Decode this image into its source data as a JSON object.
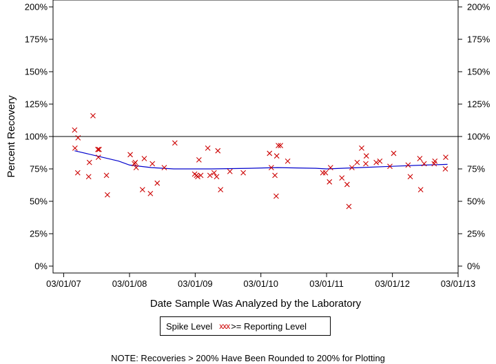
{
  "chart_data": {
    "type": "scatter",
    "xlabel": "Date Sample Was Analyzed by the Laboratory",
    "ylabel": "Percent Recovery",
    "ylim": [
      0,
      200
    ],
    "xlim": [
      "2007-01-01",
      "2013-03-01"
    ],
    "y_ticks": [
      "0%",
      "25%",
      "50%",
      "75%",
      "100%",
      "125%",
      "150%",
      "175%",
      "200%"
    ],
    "y_tick_values": [
      0,
      25,
      50,
      75,
      100,
      125,
      150,
      175,
      200
    ],
    "x_ticks": [
      "03/01/07",
      "03/01/08",
      "03/01/09",
      "03/01/10",
      "03/01/11",
      "03/01/12",
      "03/01/13"
    ],
    "x_tick_values": [
      "2007-03-01",
      "2008-03-01",
      "2009-03-01",
      "2010-03-01",
      "2011-03-01",
      "2012-03-01",
      "2013-03-01"
    ],
    "reference_line": 100,
    "colors": {
      "points": "#cc0000",
      "trend": "#0000cc",
      "axes": "#000000"
    },
    "series": [
      {
        "legend_symbol": "xxx",
        "points": [
          [
            "2007-05-01",
            105
          ],
          [
            "2007-05-03",
            91
          ],
          [
            "2007-05-18",
            72
          ],
          [
            "2007-05-20",
            99
          ],
          [
            "2007-07-18",
            69
          ],
          [
            "2007-07-22",
            80
          ],
          [
            "2007-08-11",
            116
          ],
          [
            "2007-09-07",
            90
          ],
          [
            "2007-09-14",
            90
          ],
          [
            "2007-09-10",
            84
          ],
          [
            "2007-10-25",
            70
          ],
          [
            "2007-10-30",
            55
          ],
          [
            "2008-03-05",
            86
          ],
          [
            "2008-03-28",
            79
          ],
          [
            "2008-04-02",
            80
          ],
          [
            "2008-04-07",
            76
          ],
          [
            "2008-05-12",
            59
          ],
          [
            "2008-05-22",
            83
          ],
          [
            "2008-06-25",
            56
          ],
          [
            "2008-07-06",
            79
          ],
          [
            "2008-08-02",
            64
          ],
          [
            "2008-09-10",
            76
          ],
          [
            "2008-11-08",
            95
          ],
          [
            "2009-02-26",
            71
          ],
          [
            "2009-03-08",
            70
          ],
          [
            "2009-03-15",
            69
          ],
          [
            "2009-03-22",
            82
          ],
          [
            "2009-04-01",
            70
          ],
          [
            "2009-05-10",
            91
          ],
          [
            "2009-05-22",
            70
          ],
          [
            "2009-06-14",
            72
          ],
          [
            "2009-06-28",
            69
          ],
          [
            "2009-07-05",
            89
          ],
          [
            "2009-07-20",
            59
          ],
          [
            "2009-09-10",
            73
          ],
          [
            "2009-11-23",
            72
          ],
          [
            "2010-04-18",
            87
          ],
          [
            "2010-04-28",
            76
          ],
          [
            "2010-05-18",
            70
          ],
          [
            "2010-05-28",
            85
          ],
          [
            "2010-05-25",
            54
          ],
          [
            "2010-06-06",
            93
          ],
          [
            "2010-06-18",
            93
          ],
          [
            "2010-07-28",
            81
          ],
          [
            "2011-02-08",
            72
          ],
          [
            "2011-02-23",
            72
          ],
          [
            "2011-03-17",
            65
          ],
          [
            "2011-03-23",
            76
          ],
          [
            "2011-05-25",
            68
          ],
          [
            "2011-06-23",
            63
          ],
          [
            "2011-07-03",
            46
          ],
          [
            "2011-07-20",
            76
          ],
          [
            "2011-08-18",
            80
          ],
          [
            "2011-09-12",
            91
          ],
          [
            "2011-10-05",
            79
          ],
          [
            "2011-10-08",
            85
          ],
          [
            "2011-12-02",
            80
          ],
          [
            "2011-12-22",
            81
          ],
          [
            "2012-02-16",
            77
          ],
          [
            "2012-03-08",
            87
          ],
          [
            "2012-05-27",
            78
          ],
          [
            "2012-06-08",
            69
          ],
          [
            "2012-07-31",
            83
          ],
          [
            "2012-08-05",
            59
          ],
          [
            "2012-08-24",
            79
          ],
          [
            "2012-10-19",
            79
          ],
          [
            "2012-10-23",
            81
          ],
          [
            "2012-12-20",
            75
          ],
          [
            "2012-12-22",
            84
          ]
        ]
      }
    ],
    "trend_line": [
      [
        "2007-05-01",
        89
      ],
      [
        "2007-09-01",
        85
      ],
      [
        "2008-01-01",
        81
      ],
      [
        "2008-03-01",
        78
      ],
      [
        "2008-07-01",
        76
      ],
      [
        "2008-11-01",
        75
      ],
      [
        "2009-06-01",
        75
      ],
      [
        "2010-01-01",
        75.5
      ],
      [
        "2010-06-01",
        76
      ],
      [
        "2011-01-01",
        75.5
      ],
      [
        "2011-03-01",
        75
      ],
      [
        "2011-09-01",
        76
      ],
      [
        "2012-03-01",
        77
      ],
      [
        "2012-09-01",
        78
      ],
      [
        "2013-01-01",
        78.5
      ]
    ]
  },
  "legend": {
    "label": "Spike Level",
    "marker_text": "xxx",
    "entry": ">= Reporting Level"
  },
  "note": "NOTE: Recoveries > 200% Have Been Rounded to 200% for Plotting"
}
